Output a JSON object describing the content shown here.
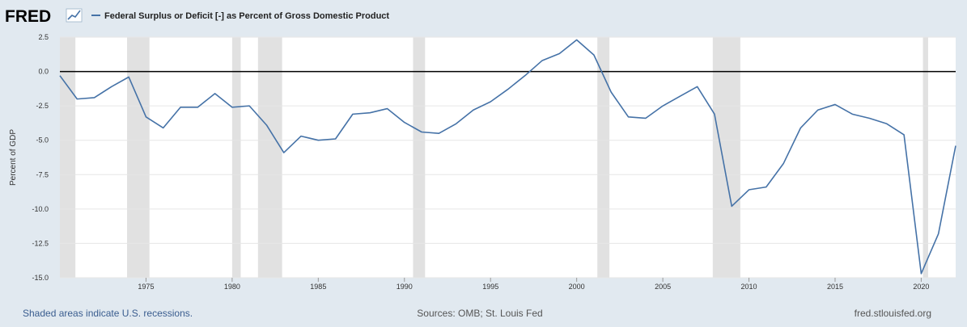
{
  "header": {
    "logo_text": "FRED",
    "legend_label": "Federal Surplus or Deficit [-] as Percent of Gross Domestic Product"
  },
  "footer": {
    "recession_note": "Shaded areas indicate U.S. recessions.",
    "sources": "Sources: OMB; St. Louis Fed",
    "site": "fred.stlouisfed.org"
  },
  "colors": {
    "series": "#4572a7",
    "recession": "#e1e1e1",
    "zero_line": "#000000",
    "gridline": "#e6e6e6",
    "frame_bg": "#e1e9f0",
    "plot_bg": "#ffffff"
  },
  "chart_data": {
    "type": "line",
    "title": "",
    "xlabel": "",
    "ylabel": "Percent of GDP",
    "xlim": [
      1970,
      2022
    ],
    "ylim": [
      -15,
      2.5
    ],
    "grid": true,
    "legend_position": "top-left",
    "yticks": [
      2.5,
      0,
      -2.5,
      -5,
      -7.5,
      -10,
      -12.5,
      -15
    ],
    "ytick_labels": [
      "2.5",
      "0.0",
      "-2.5",
      "-5.0",
      "-7.5",
      "-10.0",
      "-12.5",
      "-15.0"
    ],
    "xticks": [
      1975,
      1980,
      1985,
      1990,
      1995,
      2000,
      2005,
      2010,
      2015,
      2020
    ],
    "xtick_labels": [
      "1975",
      "1980",
      "1985",
      "1990",
      "1995",
      "2000",
      "2005",
      "2010",
      "2015",
      "2020"
    ],
    "recessions": [
      [
        1970,
        1970.9
      ],
      [
        1973.9,
        1975.2
      ],
      [
        1980.0,
        1980.5
      ],
      [
        1981.5,
        1982.9
      ],
      [
        1990.5,
        1991.2
      ],
      [
        2001.2,
        2001.9
      ],
      [
        2007.9,
        2009.5
      ],
      [
        2020.1,
        2020.4
      ]
    ],
    "series": [
      {
        "name": "Federal Surplus or Deficit [-] as Percent of Gross Domestic Product",
        "x": [
          1970,
          1971,
          1972,
          1973,
          1974,
          1975,
          1976,
          1977,
          1978,
          1979,
          1980,
          1981,
          1982,
          1983,
          1984,
          1985,
          1986,
          1987,
          1988,
          1989,
          1990,
          1991,
          1992,
          1993,
          1994,
          1995,
          1996,
          1997,
          1998,
          1999,
          2000,
          2001,
          2002,
          2003,
          2004,
          2005,
          2006,
          2007,
          2008,
          2009,
          2010,
          2011,
          2012,
          2013,
          2014,
          2015,
          2016,
          2017,
          2018,
          2019,
          2020,
          2021,
          2022
        ],
        "values": [
          -0.3,
          -2.0,
          -1.9,
          -1.1,
          -0.4,
          -3.3,
          -4.1,
          -2.6,
          -2.6,
          -1.6,
          -2.6,
          -2.5,
          -3.9,
          -5.9,
          -4.7,
          -5.0,
          -4.9,
          -3.1,
          -3.0,
          -2.7,
          -3.7,
          -4.4,
          -4.5,
          -3.8,
          -2.8,
          -2.2,
          -1.3,
          -0.3,
          0.8,
          1.3,
          2.3,
          1.2,
          -1.5,
          -3.3,
          -3.4,
          -2.5,
          -1.8,
          -1.1,
          -3.1,
          -9.8,
          -8.6,
          -8.4,
          -6.7,
          -4.1,
          -2.8,
          -2.4,
          -3.1,
          -3.4,
          -3.8,
          -4.6,
          -14.7,
          -11.8,
          -5.4
        ]
      }
    ]
  }
}
